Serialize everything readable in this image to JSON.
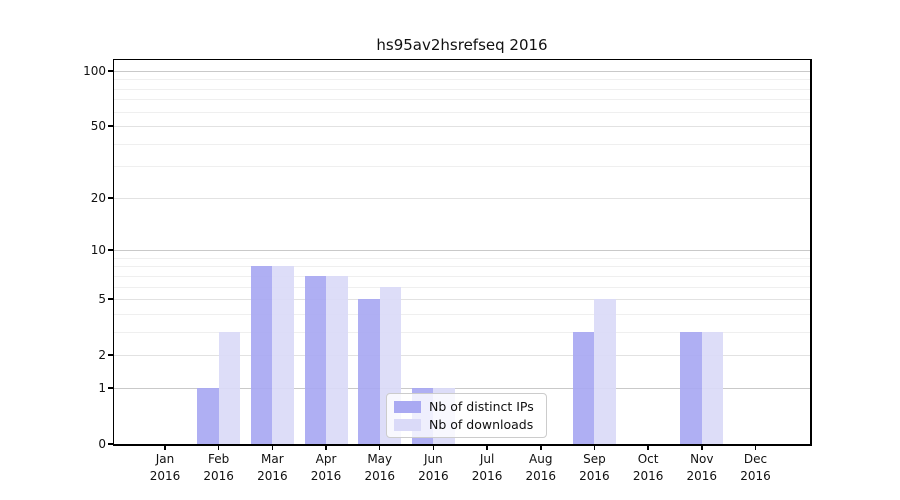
{
  "chart_data": {
    "type": "bar",
    "title": "hs95av2hsrefseq 2016",
    "x_year": "2016",
    "categories": [
      "Jan",
      "Feb",
      "Mar",
      "Apr",
      "May",
      "Jun",
      "Jul",
      "Aug",
      "Sep",
      "Oct",
      "Nov",
      "Dec"
    ],
    "series": [
      {
        "name": "Nb of distinct IPs",
        "color": "#a9a9f2",
        "values": [
          0,
          1,
          8,
          7,
          5,
          1,
          0,
          0,
          3,
          0,
          3,
          0
        ]
      },
      {
        "name": "Nb of downloads",
        "color": "#dadaf8",
        "values": [
          0,
          3,
          8,
          7,
          6,
          1,
          0,
          0,
          5,
          0,
          3,
          0
        ]
      }
    ],
    "y_axis": {
      "scale": "log1p",
      "tick_labels": [
        "0",
        "1",
        "2",
        "5",
        "10",
        "20",
        "50",
        "100"
      ],
      "major_ticks": [
        0,
        1,
        2,
        5,
        10,
        20,
        50,
        100
      ],
      "decade_ticks": [
        1,
        10,
        100
      ],
      "minor_gridlines": [
        3,
        4,
        6,
        7,
        8,
        9,
        30,
        40,
        60,
        70,
        80,
        90
      ],
      "ylim": [
        0,
        115
      ]
    },
    "legend_entries": [
      "Nb of distinct IPs",
      "Nb of downloads"
    ],
    "grid": true,
    "legend_position": "lower center"
  },
  "colors": {
    "decade_gridline": "#c9c9c9",
    "major_gridline": "#e2e2e2",
    "minor_gridline": "#efefef",
    "axis": "#000000",
    "background": "#ffffff"
  }
}
